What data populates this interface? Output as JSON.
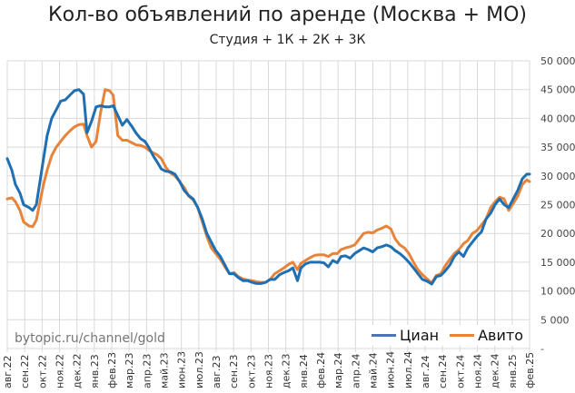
{
  "chart_data": {
    "type": "line",
    "title": "Кол-во объявлений по аренде (Москва + МО)",
    "subtitle": "Студия + 1К + 2К + 3К",
    "xlabel": "",
    "ylabel": "",
    "ylim": [
      0,
      50000
    ],
    "y_axis_position": "right",
    "y_ticks": [
      0,
      5000,
      10000,
      15000,
      20000,
      25000,
      30000,
      35000,
      40000,
      45000,
      50000
    ],
    "y_tick_labels": [
      "-",
      "5 000",
      "10 000",
      "15 000",
      "20 000",
      "25 000",
      "30 000",
      "35 000",
      "40 000",
      "45 000",
      "50 000"
    ],
    "grid": true,
    "legend_position": "bottom-right inside",
    "categories": [
      "авг.22",
      "сен.22",
      "окт.22",
      "ноя.22",
      "дек.22",
      "янв.23",
      "фев.23",
      "мар.23",
      "апр.23",
      "май.23",
      "июн.23",
      "июл.23",
      "авг.23",
      "сен.23",
      "окт.23",
      "ноя.23",
      "дек.23",
      "янв.24",
      "фев.24",
      "мар.24",
      "апр.24",
      "май.24",
      "июн.24",
      "июл.24",
      "авг.24",
      "сен.24",
      "окт.24",
      "ноя.24",
      "дек.24",
      "янв.25",
      "фев.25"
    ],
    "x_unit": "month index from авг.22 (fractional = weekly points)",
    "series": [
      {
        "name": "Циан",
        "color": "#1F6FB2",
        "x": [
          0,
          0.26,
          0.47,
          0.73,
          0.94,
          1.25,
          1.46,
          1.67,
          1.88,
          2.08,
          2.29,
          2.55,
          2.81,
          3.07,
          3.33,
          3.59,
          3.85,
          4.11,
          4.38,
          4.58,
          4.84,
          5.1,
          5.36,
          5.62,
          5.88,
          6.09,
          6.35,
          6.61,
          6.87,
          7.13,
          7.39,
          7.65,
          7.91,
          8.12,
          8.38,
          8.59,
          8.85,
          9.11,
          9.37,
          9.63,
          9.9,
          10.16,
          10.42,
          10.68,
          10.94,
          11.2,
          11.46,
          11.72,
          11.98,
          12.24,
          12.5,
          12.76,
          13.02,
          13.28,
          13.54,
          13.8,
          14.06,
          14.32,
          14.58,
          14.84,
          15.1,
          15.36,
          15.63,
          15.89,
          16.15,
          16.41,
          16.67,
          16.87,
          17.13,
          17.4,
          17.66,
          17.92,
          18.18,
          18.44,
          18.7,
          18.96,
          19.17,
          19.43,
          19.69,
          19.95,
          20.21,
          20.47,
          20.73,
          20.99,
          21.25,
          21.51,
          21.77,
          22.03,
          22.29,
          22.55,
          22.81,
          23.07,
          23.33,
          23.59,
          23.85,
          24.11,
          24.38,
          24.64,
          24.9,
          25.16,
          25.42,
          25.68,
          25.94,
          26.2,
          26.46,
          26.72,
          26.98,
          27.24,
          27.5,
          27.76,
          28.02,
          28.28,
          28.54,
          28.8,
          29.06,
          29.32,
          29.58,
          29.84,
          30.0
        ],
        "values": [
          33000,
          31000,
          28500,
          27000,
          25000,
          24500,
          24000,
          25000,
          29000,
          33000,
          37000,
          40000,
          41500,
          43000,
          43200,
          44000,
          44800,
          45000,
          44200,
          37500,
          39500,
          42000,
          42200,
          42000,
          42000,
          42200,
          40500,
          38800,
          39800,
          38700,
          37500,
          36500,
          36000,
          35000,
          33500,
          32500,
          31200,
          30800,
          30700,
          30300,
          29000,
          27500,
          26600,
          26000,
          24500,
          22500,
          20000,
          18500,
          17000,
          16000,
          14500,
          13000,
          13000,
          12300,
          11800,
          11800,
          11500,
          11300,
          11300,
          11500,
          12000,
          12000,
          12800,
          13200,
          13500,
          14000,
          11800,
          14000,
          14700,
          15000,
          15000,
          15000,
          14900,
          14200,
          15300,
          14900,
          16000,
          16100,
          15700,
          16500,
          17000,
          17500,
          17200,
          16800,
          17500,
          17700,
          18000,
          17700,
          17000,
          16500,
          15800,
          15000,
          14000,
          13000,
          12000,
          11700,
          11200,
          12500,
          12700,
          13500,
          14500,
          16000,
          16800,
          16000,
          17500,
          18500,
          19500,
          20300,
          22500,
          23500,
          25000,
          26000,
          25000,
          24500,
          26000,
          27500,
          29500,
          30300,
          30300
        ]
      },
      {
        "name": "Авито",
        "color": "#E8833A",
        "x": [
          0,
          0.26,
          0.47,
          0.73,
          0.94,
          1.25,
          1.46,
          1.67,
          1.88,
          2.08,
          2.29,
          2.55,
          2.81,
          3.07,
          3.33,
          3.59,
          3.85,
          4.11,
          4.38,
          4.58,
          4.84,
          5.1,
          5.36,
          5.62,
          5.88,
          6.09,
          6.35,
          6.61,
          6.87,
          7.13,
          7.39,
          7.65,
          7.91,
          8.12,
          8.38,
          8.59,
          8.85,
          9.11,
          9.37,
          9.63,
          9.9,
          10.16,
          10.42,
          10.68,
          10.94,
          11.2,
          11.46,
          11.72,
          11.98,
          12.24,
          12.5,
          12.76,
          13.02,
          13.28,
          13.54,
          13.8,
          14.06,
          14.32,
          14.58,
          14.84,
          15.1,
          15.36,
          15.63,
          15.89,
          16.15,
          16.41,
          16.67,
          16.87,
          17.13,
          17.4,
          17.66,
          17.92,
          18.18,
          18.44,
          18.7,
          18.96,
          19.17,
          19.43,
          19.69,
          19.95,
          20.21,
          20.47,
          20.73,
          20.99,
          21.25,
          21.51,
          21.77,
          22.03,
          22.29,
          22.55,
          22.81,
          23.07,
          23.33,
          23.59,
          23.85,
          24.11,
          24.38,
          24.64,
          24.9,
          25.16,
          25.42,
          25.68,
          25.94,
          26.2,
          26.46,
          26.72,
          26.98,
          27.24,
          27.5,
          27.76,
          28.02,
          28.28,
          28.54,
          28.8,
          29.06,
          29.32,
          29.58,
          29.84,
          30.0
        ],
        "values": [
          26000,
          26200,
          25500,
          24000,
          22000,
          21300,
          21200,
          22300,
          25500,
          28500,
          31000,
          33500,
          35000,
          36000,
          37000,
          37800,
          38500,
          38900,
          39000,
          37000,
          35000,
          36000,
          41000,
          45000,
          44800,
          44000,
          37000,
          36200,
          36200,
          35800,
          35400,
          35300,
          35000,
          34500,
          34000,
          33700,
          33000,
          31500,
          30500,
          30000,
          29000,
          28000,
          26500,
          25800,
          24500,
          22000,
          19500,
          17500,
          16500,
          15500,
          14200,
          13000,
          13200,
          12500,
          12100,
          11900,
          11800,
          11600,
          11500,
          11500,
          12000,
          13000,
          13500,
          14000,
          14600,
          15000,
          13700,
          14800,
          15300,
          15800,
          16200,
          16300,
          16300,
          16000,
          16500,
          16500,
          17200,
          17500,
          17700,
          18000,
          19000,
          20000,
          20200,
          20100,
          20600,
          20900,
          21300,
          20800,
          19000,
          18000,
          17500,
          16500,
          15000,
          13700,
          12800,
          12100,
          11400,
          12700,
          13000,
          14400,
          15500,
          16500,
          17200,
          18200,
          18800,
          20000,
          20500,
          21500,
          22500,
          24500,
          25500,
          26300,
          26000,
          24000,
          25200,
          26500,
          28500,
          29300,
          29000
        ]
      }
    ]
  },
  "watermark": "bytopic.ru/channel/gold",
  "legend": {
    "items": [
      {
        "label": "Циан",
        "color": "#1F6FB2"
      },
      {
        "label": "Авито",
        "color": "#E8833A"
      }
    ]
  }
}
